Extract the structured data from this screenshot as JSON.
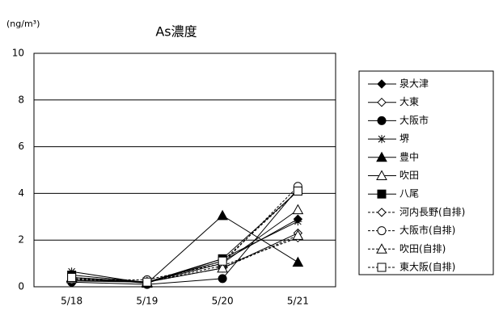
{
  "chart_data": {
    "type": "line",
    "title": "As濃度",
    "y_unit": "(ng/m³)",
    "categories": [
      "5/18",
      "5/19",
      "5/20",
      "5/21"
    ],
    "ylim": [
      0,
      10
    ],
    "yticks": [
      0,
      2,
      4,
      6,
      8,
      10
    ],
    "grid": true,
    "legend": "right",
    "series": [
      {
        "name": "泉大津",
        "color": "#000000",
        "marker": "diamond-filled",
        "dash": false,
        "values": [
          0.25,
          0.2,
          1.1,
          2.9
        ]
      },
      {
        "name": "大東",
        "color": "#000000",
        "marker": "diamond-open",
        "dash": false,
        "values": [
          0.3,
          0.2,
          0.8,
          2.3
        ]
      },
      {
        "name": "大阪市",
        "color": "#000000",
        "marker": "circle-filled",
        "dash": false,
        "values": [
          0.2,
          0.1,
          0.35,
          4.2
        ]
      },
      {
        "name": "堺",
        "color": "#000000",
        "marker": "asterisk",
        "dash": false,
        "values": [
          0.65,
          0.15,
          1.2,
          2.8
        ]
      },
      {
        "name": "豊中",
        "color": "#000000",
        "marker": "triangle-filled",
        "dash": false,
        "values": [
          0.4,
          0.15,
          3.05,
          1.05
        ]
      },
      {
        "name": "吹田",
        "color": "#000000",
        "marker": "triangle-open",
        "dash": false,
        "values": [
          0.4,
          0.2,
          1.0,
          3.3
        ]
      },
      {
        "name": "八尾",
        "color": "#000000",
        "marker": "square-filled",
        "dash": false,
        "values": [
          0.5,
          0.2,
          1.2,
          4.1
        ]
      },
      {
        "name": "河内長野(自排)",
        "color": "#000000",
        "marker": "diamond-open",
        "dash": true,
        "values": [
          0.3,
          0.2,
          0.9,
          2.1
        ]
      },
      {
        "name": "大阪市(自排)",
        "color": "#000000",
        "marker": "circle-open",
        "dash": true,
        "values": [
          0.3,
          0.3,
          1.0,
          4.3
        ]
      },
      {
        "name": "吹田(自排)",
        "color": "#000000",
        "marker": "triangle-open",
        "dash": true,
        "values": [
          0.35,
          0.2,
          0.8,
          2.2
        ]
      },
      {
        "name": "東大阪(自排)",
        "color": "#000000",
        "marker": "square-open",
        "dash": true,
        "values": [
          0.4,
          0.2,
          1.1,
          4.1
        ]
      }
    ]
  }
}
